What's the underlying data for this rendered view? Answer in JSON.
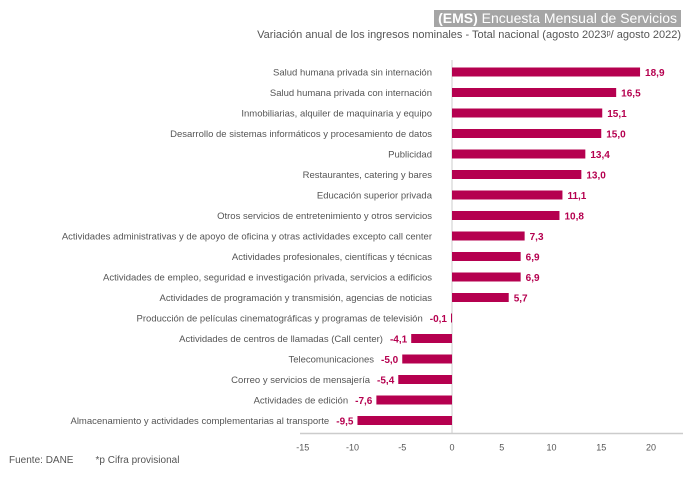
{
  "header": {
    "badge_bold": "(EMS)",
    "badge_text": " Encuesta Mensual de Servicios",
    "subtitle": "Variación anual de los ingresos nominales - Total nacional  (agosto 2023ᵖ/ agosto 2022)"
  },
  "footer": {
    "source": "Fuente: DANE",
    "note": "*p Cifra provisional"
  },
  "colors": {
    "bar": "#b5004f",
    "axis": "#cccccc",
    "label": "#555555"
  },
  "chart_data": {
    "type": "bar",
    "orientation": "horizontal",
    "categories": [
      "Salud humana privada sin internación",
      "Salud humana privada con internación",
      "Inmobiliarias, alquiler de maquinaria y equipo",
      "Desarrollo de sistemas informáticos y procesamiento de datos",
      "Publicidad",
      "Restaurantes, catering y bares",
      "Educación superior privada",
      "Otros servicios de entretenimiento y otros servicios",
      "Actividades administrativas y de apoyo de oficina y otras actividades excepto call center",
      "Actividades profesionales, científicas y técnicas",
      "Actividades de empleo, seguridad e investigación privada, servicios a edificios",
      "Actividades de programación y transmisión,  agencias de noticias",
      "Producción de películas cinematográficas y programas de televisión",
      "Actividades de centros de llamadas (Call center)",
      "Telecomunicaciones",
      "Correo y servicios de mensajería",
      "Actividades de edición",
      "Almacenamiento y actividades complementarias al transporte"
    ],
    "values": [
      18.9,
      16.5,
      15.1,
      15.0,
      13.4,
      13.0,
      11.1,
      10.8,
      7.3,
      6.9,
      6.9,
      5.7,
      -0.1,
      -4.1,
      -5.0,
      -5.4,
      -7.6,
      -9.5
    ],
    "value_labels": [
      "18,9",
      "16,5",
      "15,1",
      "15,0",
      "13,4",
      "13,0",
      "11,1",
      "10,8",
      "7,3",
      "6,9",
      "6,9",
      "5,7",
      "-0,1",
      "-4,1",
      "-5,0",
      "-5,4",
      "-7,6",
      "-9,5"
    ],
    "xlim": [
      -15,
      23
    ],
    "xticks": [
      -15,
      -10,
      -5,
      0,
      5,
      10,
      15,
      20
    ],
    "xtick_labels": [
      "-15",
      "-10",
      "-5",
      "0",
      "5",
      "10",
      "15",
      "20"
    ],
    "grid": false
  }
}
